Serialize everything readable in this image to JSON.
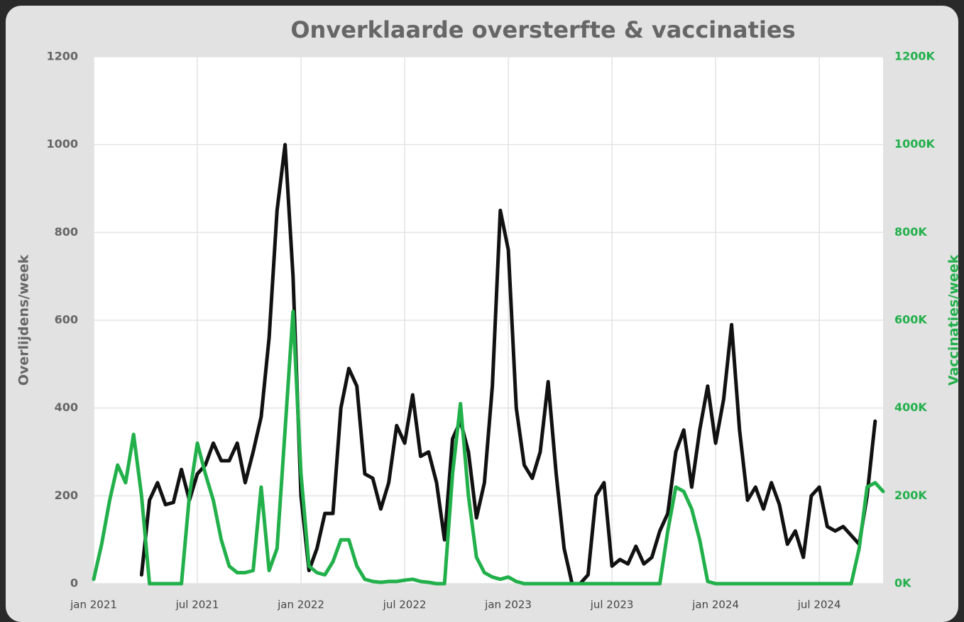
{
  "chart_data": {
    "type": "line",
    "title": "Onverklaarde oversterfte & vaccinaties",
    "y_label": "Overlijdens/week",
    "y2_label": "Vaccinaties/week",
    "categories": [
      "jan 2021",
      null,
      null,
      null,
      null,
      null,
      null,
      null,
      null,
      null,
      null,
      null,
      null,
      "jul 2021",
      null,
      null,
      null,
      null,
      null,
      null,
      null,
      null,
      null,
      null,
      null,
      null,
      "jan 2022",
      null,
      null,
      null,
      null,
      null,
      null,
      null,
      null,
      null,
      null,
      null,
      null,
      "jul 2022",
      null,
      null,
      null,
      null,
      null,
      null,
      null,
      null,
      null,
      null,
      null,
      null,
      "jan 2023",
      null,
      null,
      null,
      null,
      null,
      null,
      null,
      null,
      null,
      null,
      null,
      null,
      "jul 2023",
      null,
      null,
      null,
      null,
      null,
      null,
      null,
      null,
      null,
      null,
      null,
      null,
      "jan 2024",
      null,
      null,
      null,
      null,
      null,
      null,
      null,
      null,
      null,
      null,
      null,
      null,
      "jul 2024",
      null,
      null,
      null,
      null,
      null,
      null,
      null,
      null
    ],
    "series": [
      {
        "color": "#111111",
        "values": [
          null,
          null,
          null,
          null,
          null,
          null,
          20,
          190,
          230,
          180,
          185,
          260,
          190,
          250,
          270,
          320,
          280,
          280,
          320,
          230,
          300,
          380,
          560,
          850,
          1000,
          700,
          200,
          30,
          80,
          160,
          160,
          400,
          490,
          450,
          250,
          240,
          170,
          230,
          360,
          320,
          430,
          290,
          300,
          230,
          100,
          330,
          370,
          300,
          150,
          230,
          450,
          850,
          760,
          400,
          270,
          240,
          300,
          460,
          250,
          80,
          0,
          0,
          20,
          200,
          230,
          40,
          55,
          45,
          85,
          45,
          60,
          120,
          160,
          300,
          350,
          220,
          350,
          450,
          320,
          420,
          590,
          350,
          190,
          220,
          170,
          230,
          180,
          90,
          120,
          60,
          200,
          220,
          130,
          120,
          130,
          110,
          90,
          200,
          370,
          null
        ]
      },
      {
        "color": "#22b04b",
        "axis": "y2",
        "values": [
          10000,
          90000,
          190000,
          270000,
          230000,
          340000,
          200000,
          0,
          0,
          0,
          0,
          0,
          200000,
          320000,
          250000,
          190000,
          100000,
          40000,
          25000,
          25000,
          30000,
          220000,
          30000,
          80000,
          350000,
          620000,
          250000,
          40000,
          25000,
          20000,
          50000,
          100000,
          100000,
          40000,
          10000,
          5000,
          3000,
          5000,
          5000,
          8000,
          10000,
          5000,
          3000,
          0,
          0,
          250000,
          410000,
          200000,
          60000,
          25000,
          15000,
          10000,
          15000,
          5000,
          0,
          0,
          0,
          0,
          0,
          0,
          0,
          0,
          0,
          0,
          0,
          0,
          0,
          0,
          0,
          0,
          0,
          0,
          120000,
          220000,
          210000,
          170000,
          100000,
          5000,
          0,
          0,
          0,
          0,
          0,
          0,
          0,
          0,
          0,
          0,
          0,
          0,
          0,
          0,
          0,
          0,
          0,
          0,
          80000,
          220000,
          230000,
          210000
        ]
      }
    ],
    "ylim": [
      0,
      1200
    ],
    "yticks": [
      0,
      200,
      400,
      600,
      800,
      1000,
      1200
    ],
    "y2lim": [
      0,
      1200000
    ],
    "y2ticks": [
      {
        "value": 0,
        "label": "0K"
      },
      {
        "value": 200000,
        "label": "200K"
      },
      {
        "value": 400000,
        "label": "400K"
      },
      {
        "value": 600000,
        "label": "600K"
      },
      {
        "value": 800000,
        "label": "800K"
      },
      {
        "value": 1000000,
        "label": "1000K"
      },
      {
        "value": 1200000,
        "label": "1200K"
      }
    ],
    "grid": true
  }
}
